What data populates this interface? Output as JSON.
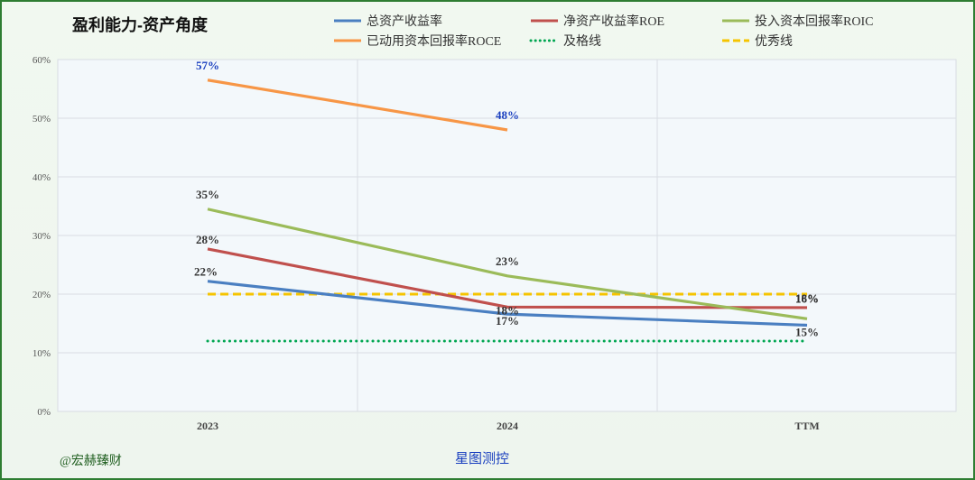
{
  "chart_data": {
    "type": "line",
    "title": "盈利能力-资产角度",
    "categories": [
      "2023",
      "2024",
      "TTM"
    ],
    "ylim": [
      0,
      0.6
    ],
    "yticks": [
      {
        "value": 0,
        "label": "0%"
      },
      {
        "value": 0.1,
        "label": "10%"
      },
      {
        "value": 0.2,
        "label": "20%"
      },
      {
        "value": 0.3,
        "label": "30%"
      },
      {
        "value": 0.4,
        "label": "40%"
      },
      {
        "value": 0.5,
        "label": "50%"
      },
      {
        "value": 0.6,
        "label": "60%"
      }
    ],
    "grid": true,
    "legend_position": "top",
    "series": [
      {
        "name": "总资产收益率",
        "color": "#4a7fc1",
        "style": "solid",
        "values": [
          0.222,
          0.166,
          0.147
        ],
        "labels": [
          "22%",
          "17%",
          "15%"
        ],
        "label_color": "#333333"
      },
      {
        "name": "净资产收益率ROE",
        "color": "#c0504d",
        "style": "solid",
        "values": [
          0.277,
          0.178,
          0.177
        ],
        "labels": [
          "28%",
          "18%",
          "18%"
        ],
        "label_color": "#333333"
      },
      {
        "name": "投入资本回报率ROIC",
        "color": "#9bbb59",
        "style": "solid",
        "values": [
          0.345,
          0.231,
          0.158
        ],
        "labels": [
          "35%",
          "23%",
          "16%"
        ],
        "label_color": "#333333"
      },
      {
        "name": "已动用资本回报率ROCE",
        "color": "#f79646",
        "style": "solid",
        "values": [
          0.565,
          0.48,
          null
        ],
        "labels": [
          "57%",
          "48%",
          null
        ],
        "label_color": "#1a3fbf"
      },
      {
        "name": "及格线",
        "color": "#00a651",
        "style": "dotted",
        "values": [
          0.12,
          0.12,
          0.12
        ],
        "labels": [
          null,
          null,
          null
        ]
      },
      {
        "name": "优秀线",
        "color": "#f5c400",
        "style": "dashed",
        "values": [
          0.2,
          0.2,
          0.2
        ],
        "labels": [
          null,
          null,
          null
        ]
      }
    ]
  },
  "footer": {
    "author": "@宏赫臻财",
    "source": "星图测控"
  }
}
